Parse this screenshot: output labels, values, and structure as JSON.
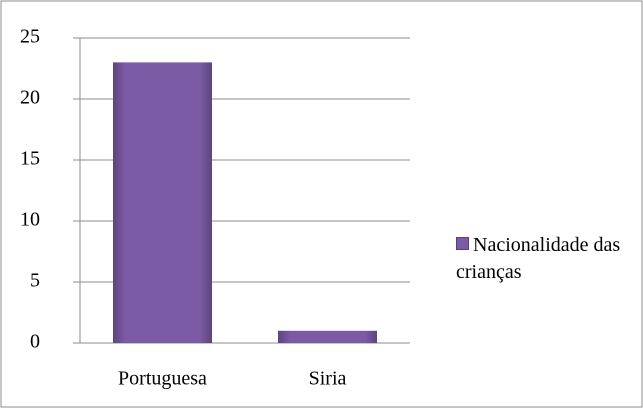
{
  "chart_data": {
    "type": "bar",
    "categories": [
      "Portuguesa",
      "Siria"
    ],
    "series": [
      {
        "name": "Nacionalidade das crianças",
        "color": "#7b5ba6",
        "values": [
          23,
          1
        ]
      }
    ],
    "ylim": [
      0,
      25
    ],
    "yticks": [
      0,
      5,
      10,
      15,
      20,
      25
    ],
    "grid": true,
    "legend": "right"
  }
}
